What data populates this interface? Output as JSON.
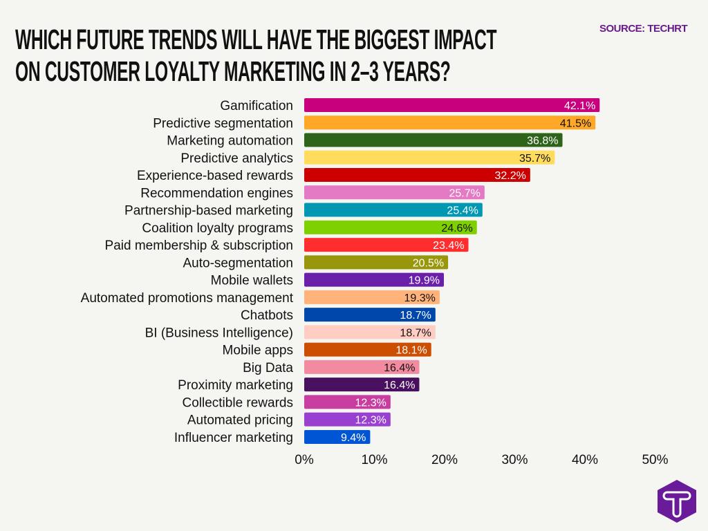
{
  "chart_data": {
    "type": "bar",
    "orientation": "horizontal",
    "title": "WHICH FUTURE TRENDS WILL HAVE THE BIGGEST IMPACT ON CUSTOMER LOYALTY MARKETING IN 2–3 YEARS?",
    "title_lines": [
      "WHICH FUTURE TRENDS WILL HAVE THE BIGGEST IMPACT",
      "ON CUSTOMER LOYALTY MARKETING IN 2–3 YEARS?"
    ],
    "source": "SOURCE: TECHRT",
    "xlabel": "",
    "ylabel": "",
    "xlim": [
      0,
      50
    ],
    "xticks": [
      "0%",
      "10%",
      "20%",
      "30%",
      "40%",
      "50%"
    ],
    "xtick_values": [
      0,
      10,
      20,
      30,
      40,
      50
    ],
    "grid": false,
    "categories": [
      "Gamification",
      "Predictive segmentation",
      "Marketing automation",
      "Predictive analytics",
      "Experience-based rewards",
      "Recommendation engines",
      "Partnership-based marketing",
      "Coalition loyalty programs",
      "Paid membership & subscription",
      "Auto-segmentation",
      "Mobile wallets",
      "Automated promotions management",
      "Chatbots",
      "BI (Business Intelligence)",
      "Mobile apps",
      "Big Data",
      "Proximity marketing",
      "Collectible rewards",
      "Automated pricing",
      "Influencer marketing"
    ],
    "values": [
      42.1,
      41.5,
      36.8,
      35.7,
      32.2,
      25.7,
      25.4,
      24.6,
      23.4,
      20.5,
      19.9,
      19.3,
      18.7,
      18.7,
      18.1,
      16.4,
      16.4,
      12.3,
      12.3,
      9.4
    ],
    "data_labels": [
      "42.1%",
      "41.5%",
      "36.8%",
      "35.7%",
      "32.2%",
      "25.7%",
      "25.4%",
      "24.6%",
      "23.4%",
      "20.5%",
      "19.9%",
      "19.3%",
      "18.7%",
      "18.7%",
      "18.1%",
      "16.4%",
      "16.4%",
      "12.3%",
      "12.3%",
      "9.4%"
    ],
    "colors": [
      "#c8007e",
      "#ffa726",
      "#2e6419",
      "#ffdc5e",
      "#cc0000",
      "#e57ac4",
      "#0097b2",
      "#7ed000",
      "#ff2d2d",
      "#98960a",
      "#6a1fa8",
      "#ffb27a",
      "#0047ab",
      "#ffcdc2",
      "#cc4e00",
      "#f28aa0",
      "#4a1060",
      "#c73ea0",
      "#9940d0",
      "#0055d4"
    ],
    "label_colors": [
      "#ffffff",
      "#111111",
      "#ffffff",
      "#111111",
      "#ffffff",
      "#ffffff",
      "#ffffff",
      "#111111",
      "#ffffff",
      "#ffffff",
      "#ffffff",
      "#111111",
      "#ffffff",
      "#111111",
      "#ffffff",
      "#111111",
      "#ffffff",
      "#ffffff",
      "#ffffff",
      "#ffffff"
    ]
  },
  "logo": {
    "letter": "T",
    "color": "#6a1b9a"
  }
}
